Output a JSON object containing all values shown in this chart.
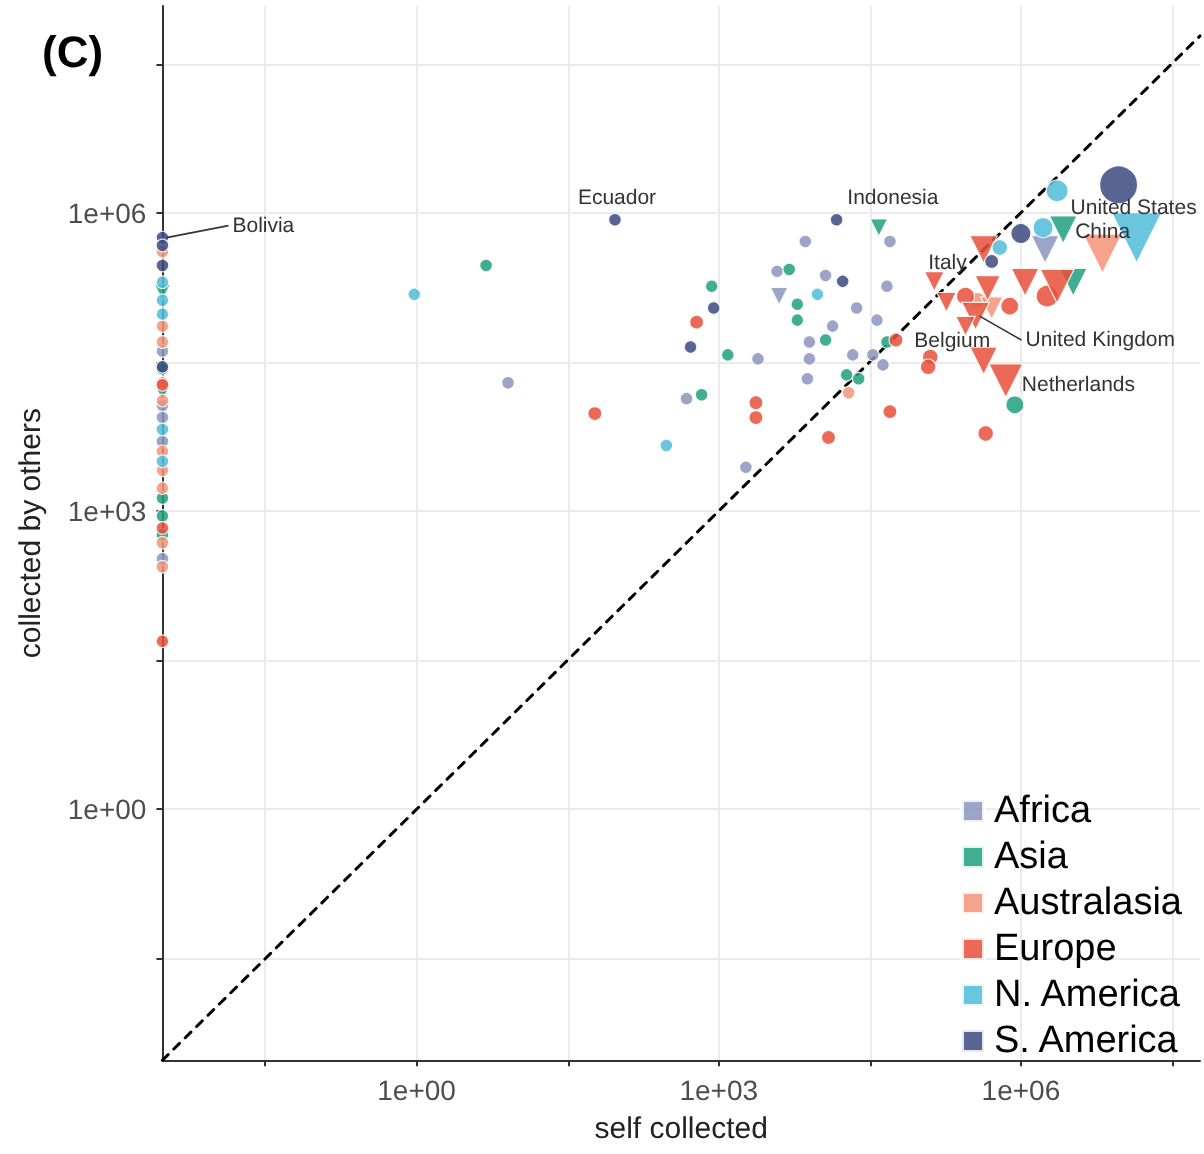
{
  "chart_data": {
    "type": "bubble",
    "title": "(C)",
    "xlabel": "self collected",
    "ylabel": "collected by others",
    "log": "xy",
    "grid": true,
    "legend": "bottom right",
    "marker": "circle",
    "xlim": [
      0.003,
      60000000
    ],
    "ylim": [
      0.003,
      120000000
    ],
    "xticks": [
      {
        "value": 0.0316,
        "label": null
      },
      {
        "value": 1,
        "label": "1e+00"
      },
      {
        "value": 31.6,
        "label": null
      },
      {
        "value": 1000,
        "label": "1e+03"
      },
      {
        "value": 31600,
        "label": null
      },
      {
        "value": 1000000,
        "label": "1e+06"
      },
      {
        "value": 31600000,
        "label": null
      }
    ],
    "yticks": [
      {
        "value": 0.0316,
        "label": null
      },
      {
        "value": 1,
        "label": "1e+00"
      },
      {
        "value": 31.6,
        "label": null
      },
      {
        "value": 1000,
        "label": "1e+03"
      },
      {
        "value": 31600,
        "label": null
      },
      {
        "value": 1000000,
        "label": "1e+06"
      },
      {
        "value": 31600000,
        "label": null
      }
    ],
    "series": [
      {
        "type": "line",
        "color": "#000000",
        "line_style": "dashed",
        "marker": "none",
        "x": [
          0.003,
          60000000
        ],
        "values": [
          0.003,
          60000000
        ]
      },
      {
        "name": "Africa",
        "color": "#8b95bd",
        "x": [
          7240,
          50100,
          3800,
          11500,
          46800,
          23400,
          13500,
          37200,
          7940,
          7940,
          21400,
          33900,
          42700,
          2450,
          7590,
          479,
          1860,
          8.1,
          0.003,
          0.003,
          0.003,
          0.003,
          0.003
        ],
        "values": [
          513000,
          513000,
          257000,
          234000,
          182000,
          110000,
          72400,
          83200,
          50100,
          33900,
          37200,
          37200,
          29500,
          33900,
          21400,
          13500,
          2750,
          19500,
          40700,
          11500,
          8710,
          5010,
          331
        ],
        "sizes": [
          0.1,
          0.1,
          0.1,
          0.1,
          0.1,
          0.1,
          0.1,
          0.1,
          0.1,
          0.1,
          0.1,
          0.1,
          0.1,
          0.1,
          0.1,
          0.1,
          0.1,
          0.1,
          0.1,
          0.1,
          0.1,
          0.1,
          0.1
        ]
      },
      {
        "color": "#8b95bd",
        "marker": "triangle",
        "x": [
          3980,
          1740000
        ],
        "values": [
          145000,
          427000
        ],
        "sizes": [
          0.12,
          0.3
        ]
      },
      {
        "name": "Asia",
        "color": "#21a07e",
        "x": [
          851,
          5010,
          6030,
          6030,
          11500,
          1230,
          676,
          18600,
          24500,
          46800,
          871000,
          4.9,
          0.003,
          0.003,
          0.003,
          0.003
        ],
        "values": [
          182000,
          269000,
          120000,
          83200,
          52500,
          37200,
          14800,
          23400,
          21400,
          50100,
          11700,
          295000,
          26900,
          1350,
          891,
          575
        ],
        "sizes": [
          0.1,
          0.1,
          0.1,
          0.1,
          0.1,
          0.1,
          0.1,
          0.1,
          0.1,
          0.1,
          0.2,
          0.1,
          0.1,
          0.1,
          0.1,
          0.1
        ]
      },
      {
        "color": "#21a07e",
        "marker": "triangle",
        "x": [
          38900,
          2630000,
          3310000,
          0.003,
          0.003
        ],
        "values": [
          708000,
          676000,
          200000,
          158000,
          15500
        ],
        "sizes": [
          0.12,
          0.3,
          0.3,
          0.1,
          0.1
        ]
      },
      {
        "name": "Australasia",
        "color": "#f4937a",
        "x": [
          19500,
          372000,
          0.003,
          0.003,
          0.003,
          0.003,
          0.003,
          0.003,
          0.003,
          0.003,
          0.003,
          0.003
        ],
        "values": [
          15500,
          132000,
          407000,
          72400,
          50100,
          19500,
          12900,
          3980,
          2570,
          1700,
          479,
          275
        ],
        "sizes": [
          0.1,
          0.15,
          0.1,
          0.1,
          0.1,
          0.1,
          0.1,
          0.1,
          0.1,
          0.1,
          0.1,
          0.1
        ]
      },
      {
        "color": "#f4937a",
        "marker": "triangle",
        "x": [
          6460000,
          513000
        ],
        "values": [
          389000,
          110000
        ],
        "sizes": [
          0.6,
          0.2
        ]
      },
      {
        "name": "Europe",
        "color": "#e8503a",
        "x": [
          1820000,
          776000,
          282000,
          126000,
          120000,
          447000,
          50100,
          12300,
          2340,
          2340,
          603,
          57500,
          58.9,
          0.003,
          0.003,
          0.003
        ],
        "values": [
          145000,
          115000,
          145000,
          35500,
          28200,
          6030,
          10000,
          5500,
          12300,
          8710,
          79400,
          52500,
          9550,
          18600,
          676,
          49
        ],
        "sizes": [
          0.3,
          0.2,
          0.2,
          0.15,
          0.15,
          0.15,
          0.12,
          0.12,
          0.12,
          0.12,
          0.12,
          0.12,
          0.12,
          0.1,
          0.1,
          0.1
        ]
      },
      {
        "color": "#e8503a",
        "marker": "triangle",
        "x": [
          427000,
          1100000,
          2290000,
          138000,
          182000,
          468000,
          355000,
          282000,
          427000,
          708000
        ],
        "values": [
          427000,
          200000,
          182000,
          204000,
          126000,
          174000,
          91200,
          72400,
          32400,
          20400
        ],
        "sizes": [
          0.3,
          0.3,
          0.45,
          0.15,
          0.15,
          0.25,
          0.3,
          0.15,
          0.3,
          0.45
        ]
      },
      {
        "name": "N. America",
        "color": "#4fbcd8",
        "x": [
          2290000,
          1660000,
          617000,
          9550,
          302,
          0.95,
          0.003,
          0.003,
          0.003,
          0.003,
          0.003
        ],
        "values": [
          1660000,
          708000,
          447000,
          151000,
          4570,
          151000,
          200000,
          132000,
          95500,
          6610,
          3160
        ],
        "sizes": [
          0.3,
          0.25,
          0.15,
          0.1,
          0.1,
          0.1,
          0.1,
          0.1,
          0.1,
          0.1,
          0.1
        ]
      },
      {
        "color": "#4fbcd8",
        "marker": "triangle",
        "x": [
          14100000
        ],
        "values": [
          562000
        ],
        "sizes": [
          1
        ]
      },
      {
        "name": "S. America",
        "color": "#3b4a80",
        "x": [
          9330000,
          1000000,
          513000,
          14800,
          17000,
          891,
          525,
          93.3,
          0.003,
          0.003,
          0.003,
          0.003
        ],
        "values": [
          1910000,
          617000,
          324000,
          851000,
          204000,
          110000,
          44700,
          851000,
          562000,
          468000,
          295000,
          28200
        ],
        "sizes": [
          0.9,
          0.25,
          0.12,
          0.1,
          0.1,
          0.1,
          0.1,
          0.1,
          0.1,
          0.1,
          0.1,
          0.1
        ]
      }
    ],
    "annotations": [
      {
        "text": "Bolivia",
        "x": 0.003,
        "y": 562000
      },
      {
        "text": "Ecuador",
        "x": 93.3,
        "y": 851000
      },
      {
        "text": "Indonesia",
        "x": 38900,
        "y": 708000
      },
      {
        "text": "United States",
        "x": 14100000,
        "y": 562000
      },
      {
        "text": "China",
        "x": 2630000,
        "y": 676000
      },
      {
        "text": "Italy",
        "x": 138000,
        "y": 204000
      },
      {
        "text": "Belgium",
        "x": 126000,
        "y": 35500
      },
      {
        "text": "United Kingdom",
        "x": 355000,
        "y": 91200
      },
      {
        "text": "Netherlands",
        "x": 708000,
        "y": 20400
      }
    ]
  }
}
